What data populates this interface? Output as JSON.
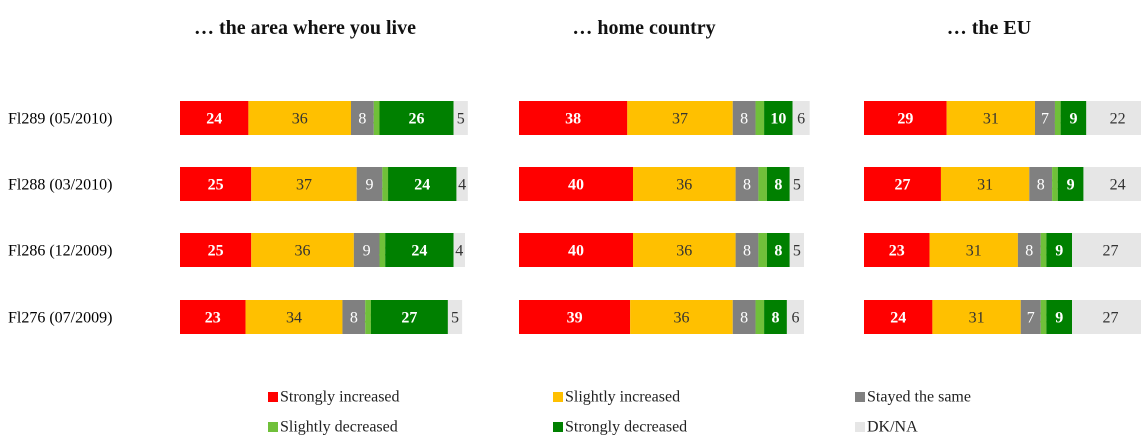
{
  "chart_data": {
    "type": "bar",
    "orientation": "horizontal",
    "stacked": true,
    "categories": [
      "Fl289 (05/2010)",
      "Fl288 (03/2010)",
      "Fl286 (12/2009)",
      "Fl276 (07/2009)"
    ],
    "series": [
      {
        "name": "Strongly increased",
        "color": "#ff0000"
      },
      {
        "name": "Slightly increased",
        "color": "#ffc000"
      },
      {
        "name": "Stayed the same",
        "color": "#808080"
      },
      {
        "name": "Slightly decreased",
        "color": "#70c03a"
      },
      {
        "name": "Strongly decreased",
        "color": "#008000"
      },
      {
        "name": "DK/NA",
        "color": "#e6e6e6"
      }
    ],
    "panels": [
      {
        "title": "… the area where you live",
        "series": [
          [
            24,
            25,
            25,
            23
          ],
          [
            36,
            37,
            36,
            34
          ],
          [
            8,
            9,
            9,
            8
          ],
          [
            2,
            2,
            2,
            2
          ],
          [
            26,
            24,
            24,
            27
          ],
          [
            5,
            4,
            4,
            5
          ]
        ]
      },
      {
        "title": "… home country",
        "series": [
          [
            38,
            40,
            40,
            39
          ],
          [
            37,
            36,
            36,
            36
          ],
          [
            8,
            8,
            8,
            8
          ],
          [
            3,
            3,
            3,
            3
          ],
          [
            10,
            8,
            8,
            8
          ],
          [
            6,
            5,
            5,
            6
          ]
        ]
      },
      {
        "title": "… the EU",
        "series": [
          [
            29,
            27,
            23,
            24
          ],
          [
            31,
            31,
            31,
            31
          ],
          [
            7,
            8,
            8,
            7
          ],
          [
            2,
            2,
            2,
            2
          ],
          [
            9,
            9,
            9,
            9
          ],
          [
            22,
            24,
            27,
            27
          ]
        ]
      }
    ]
  }
}
